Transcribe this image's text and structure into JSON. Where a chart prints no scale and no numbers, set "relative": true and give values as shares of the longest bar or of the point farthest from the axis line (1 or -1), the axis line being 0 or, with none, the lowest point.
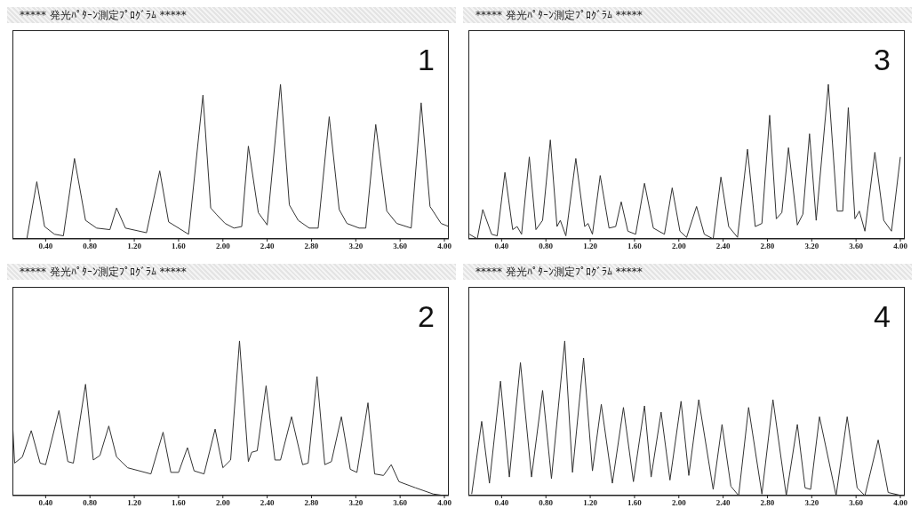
{
  "chart_data": [
    {
      "type": "line",
      "title": "***** 発光ﾊﾟﾀｰﾝ測定ﾌﾟﾛｸﾞﾗﾑ *****",
      "annotations": [
        "1"
      ],
      "relative": true,
      "color": "#333333",
      "grid": false,
      "xlim": [
        0.1,
        4.04
      ],
      "xticks": [
        {
          "value": 0.4,
          "label": "0.40"
        },
        {
          "value": 0.8,
          "label": "0.80"
        },
        {
          "value": 1.2,
          "label": "1.20"
        },
        {
          "value": 1.6,
          "label": "1.60"
        },
        {
          "value": 2.0,
          "label": "2.00"
        },
        {
          "value": 2.4,
          "label": "2.40"
        },
        {
          "value": 2.8,
          "label": "2.80"
        },
        {
          "value": 3.2,
          "label": "3.20"
        },
        {
          "value": 3.6,
          "label": "3.60"
        },
        {
          "value": 4.0,
          "label": "4.00"
        }
      ],
      "x": [
        0.23,
        0.32,
        0.39,
        0.48,
        0.56,
        0.66,
        0.76,
        0.86,
        0.98,
        1.04,
        1.12,
        1.31,
        1.43,
        1.51,
        1.69,
        1.82,
        1.89,
        1.94,
        2.02,
        2.1,
        2.17,
        2.23,
        2.32,
        2.4,
        2.52,
        2.6,
        2.68,
        2.78,
        2.86,
        2.96,
        3.05,
        3.12,
        3.23,
        3.29,
        3.38,
        3.48,
        3.57,
        3.7,
        3.79,
        3.87,
        3.97,
        4.04
      ],
      "values": [
        0,
        0.37,
        0.08,
        0.03,
        0.02,
        0.52,
        0.12,
        0.07,
        0.06,
        0.2,
        0.07,
        0.04,
        0.44,
        0.11,
        0.03,
        0.93,
        0.2,
        0.16,
        0.1,
        0.07,
        0.08,
        0.6,
        0.17,
        0.09,
        1,
        0.22,
        0.12,
        0.07,
        0.07,
        0.79,
        0.19,
        0.1,
        0.07,
        0.07,
        0.74,
        0.18,
        0.1,
        0.07,
        0.88,
        0.21,
        0.1,
        0.08
      ]
    },
    {
      "type": "line",
      "title": "***** 発光ﾊﾟﾀｰﾝ測定ﾌﾟﾛｸﾞﾗﾑ *****",
      "annotations": [
        "3"
      ],
      "relative": true,
      "color": "#333333",
      "grid": false,
      "xlim": [
        0.1,
        4.04
      ],
      "xticks": [
        {
          "value": 0.4,
          "label": "0.40"
        },
        {
          "value": 0.8,
          "label": "0.80"
        },
        {
          "value": 1.2,
          "label": "1.20"
        },
        {
          "value": 1.6,
          "label": "1.60"
        },
        {
          "value": 2.0,
          "label": "2.00"
        },
        {
          "value": 2.4,
          "label": "2.40"
        },
        {
          "value": 2.8,
          "label": "2.80"
        },
        {
          "value": 3.2,
          "label": "3.20"
        },
        {
          "value": 3.6,
          "label": "3.60"
        },
        {
          "value": 4.0,
          "label": "4.00"
        }
      ],
      "x": [
        0.11,
        0.18,
        0.23,
        0.31,
        0.36,
        0.43,
        0.5,
        0.54,
        0.58,
        0.65,
        0.71,
        0.77,
        0.84,
        0.9,
        0.93,
        0.98,
        1.07,
        1.15,
        1.18,
        1.22,
        1.29,
        1.37,
        1.43,
        1.48,
        1.54,
        1.61,
        1.69,
        1.77,
        1.87,
        1.94,
        2.01,
        2.07,
        2.16,
        2.23,
        2.31,
        2.38,
        2.45,
        2.53,
        2.62,
        2.69,
        2.75,
        2.82,
        2.88,
        2.93,
        2.99,
        3.07,
        3.12,
        3.18,
        3.24,
        3.35,
        3.43,
        3.48,
        3.53,
        3.59,
        3.63,
        3.68,
        3.77,
        3.85,
        3.92,
        4.0
      ],
      "values": [
        0.03,
        0,
        0.19,
        0.03,
        0.02,
        0.43,
        0.06,
        0.08,
        0.03,
        0.53,
        0.06,
        0.12,
        0.64,
        0.08,
        0.12,
        0.02,
        0.52,
        0.08,
        0.1,
        0.03,
        0.41,
        0.07,
        0.08,
        0.24,
        0.05,
        0.03,
        0.36,
        0.07,
        0.03,
        0.33,
        0.05,
        0.01,
        0.21,
        0.03,
        0,
        0.4,
        0.08,
        0.01,
        0.58,
        0.08,
        0.1,
        0.8,
        0.13,
        0.17,
        0.59,
        0.09,
        0.16,
        0.68,
        0.12,
        1,
        0.18,
        0.18,
        0.85,
        0.13,
        0.18,
        0.05,
        0.56,
        0.12,
        0.05,
        0.53
      ]
    },
    {
      "type": "line",
      "title": "***** 発光ﾊﾟﾀｰﾝ測定ﾌﾟﾛｸﾞﾗﾑ *****",
      "annotations": [
        "2"
      ],
      "relative": true,
      "color": "#333333",
      "grid": false,
      "xlim": [
        0.1,
        4.04
      ],
      "xticks": [
        {
          "value": 0.4,
          "label": "0.40"
        },
        {
          "value": 0.8,
          "label": "0.80"
        },
        {
          "value": 1.2,
          "label": "1.20"
        },
        {
          "value": 1.6,
          "label": "1.60"
        },
        {
          "value": 2.0,
          "label": "2.00"
        },
        {
          "value": 2.4,
          "label": "2.40"
        },
        {
          "value": 2.8,
          "label": "2.80"
        },
        {
          "value": 3.2,
          "label": "3.20"
        },
        {
          "value": 3.6,
          "label": "3.60"
        },
        {
          "value": 4.0,
          "label": "4.00"
        }
      ],
      "x": [
        0.1,
        0.12,
        0.19,
        0.27,
        0.35,
        0.4,
        0.52,
        0.6,
        0.65,
        0.76,
        0.83,
        0.89,
        0.97,
        1.04,
        1.14,
        1.35,
        1.46,
        1.53,
        1.6,
        1.68,
        1.74,
        1.83,
        1.93,
        2.0,
        2.07,
        2.15,
        2.23,
        2.26,
        2.31,
        2.39,
        2.47,
        2.52,
        2.62,
        2.72,
        2.77,
        2.85,
        2.92,
        2.98,
        3.07,
        3.15,
        3.21,
        3.31,
        3.37,
        3.45,
        3.52,
        3.59,
        3.74,
        3.9,
        4.0
      ],
      "values": [
        0.48,
        0.21,
        0.25,
        0.42,
        0.21,
        0.2,
        0.55,
        0.22,
        0.21,
        0.72,
        0.23,
        0.26,
        0.45,
        0.25,
        0.18,
        0.14,
        0.41,
        0.15,
        0.15,
        0.31,
        0.16,
        0.14,
        0.43,
        0.18,
        0.23,
        1,
        0.22,
        0.28,
        0.29,
        0.71,
        0.23,
        0.23,
        0.51,
        0.2,
        0.21,
        0.77,
        0.2,
        0.22,
        0.51,
        0.17,
        0.15,
        0.6,
        0.14,
        0.13,
        0.2,
        0.09,
        0.05,
        0.01,
        0
      ]
    },
    {
      "type": "line",
      "title": "***** 発光ﾊﾟﾀｰﾝ測定ﾌﾟﾛｸﾞﾗﾑ *****",
      "annotations": [
        "4"
      ],
      "relative": true,
      "color": "#333333",
      "grid": false,
      "xlim": [
        0.1,
        4.04
      ],
      "xticks": [
        {
          "value": 0.4,
          "label": "0.40"
        },
        {
          "value": 0.8,
          "label": "0.80"
        },
        {
          "value": 1.2,
          "label": "1.20"
        },
        {
          "value": 1.6,
          "label": "1.60"
        },
        {
          "value": 2.0,
          "label": "2.00"
        },
        {
          "value": 2.4,
          "label": "2.40"
        },
        {
          "value": 2.8,
          "label": "2.80"
        },
        {
          "value": 3.2,
          "label": "3.20"
        },
        {
          "value": 3.6,
          "label": "3.60"
        },
        {
          "value": 4.0,
          "label": "4.00"
        }
      ],
      "x": [
        0.13,
        0.22,
        0.29,
        0.39,
        0.47,
        0.57,
        0.67,
        0.77,
        0.85,
        0.97,
        1.04,
        1.14,
        1.22,
        1.3,
        1.4,
        1.5,
        1.59,
        1.69,
        1.75,
        1.84,
        1.92,
        2.02,
        2.09,
        2.18,
        2.31,
        2.39,
        2.47,
        2.54,
        2.63,
        2.75,
        2.85,
        2.97,
        3.07,
        3.14,
        3.19,
        3.27,
        3.42,
        3.52,
        3.61,
        3.68,
        3.8,
        3.89,
        4.01
      ],
      "values": [
        0.01,
        0.48,
        0.08,
        0.74,
        0.12,
        0.86,
        0.12,
        0.68,
        0.11,
        1,
        0.15,
        0.89,
        0.16,
        0.59,
        0.08,
        0.57,
        0.09,
        0.58,
        0.12,
        0.54,
        0.1,
        0.61,
        0.13,
        0.62,
        0.04,
        0.46,
        0.06,
        0,
        0.57,
        0.01,
        0.62,
        0,
        0.46,
        0.05,
        0.04,
        0.51,
        0,
        0.51,
        0.05,
        0,
        0.36,
        0.02,
        0
      ]
    }
  ]
}
